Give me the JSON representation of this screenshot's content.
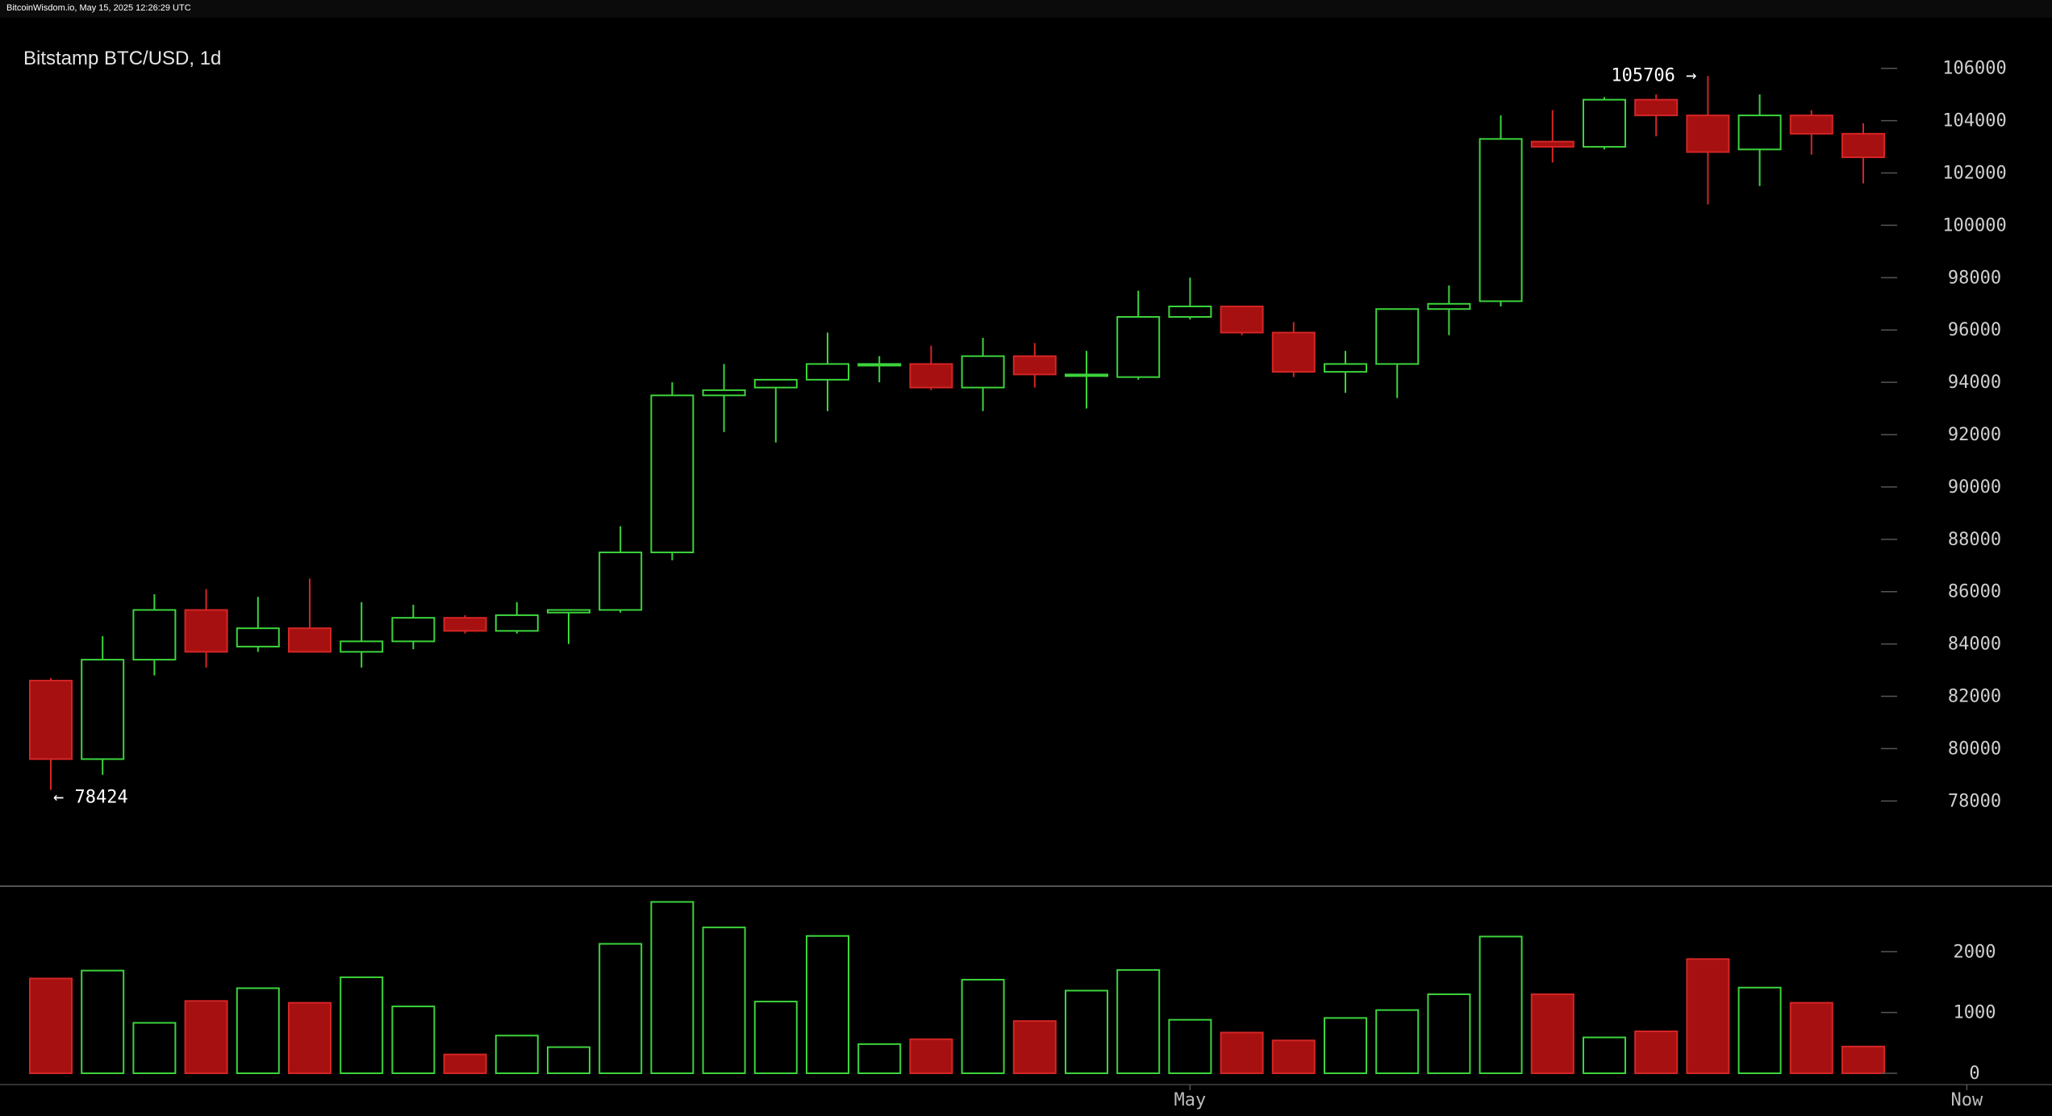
{
  "header": {
    "source_line": "BitcoinWisdom.io, May 15, 2025 12:26:29 UTC"
  },
  "chart_data": {
    "type": "candlestick",
    "title": "Bitstamp BTC/USD, 1d",
    "price_axis": {
      "ylim": [
        76500,
        106700
      ],
      "ticks": [
        78000,
        80000,
        82000,
        84000,
        86000,
        88000,
        90000,
        92000,
        94000,
        96000,
        98000,
        100000,
        102000,
        104000,
        106000
      ],
      "position": "right"
    },
    "volume_axis": {
      "ylim": [
        0,
        2800
      ],
      "ticks": [
        0,
        1000,
        2000
      ],
      "position": "right"
    },
    "x_labels": [
      {
        "index": 22,
        "text": "May"
      },
      {
        "index": 37,
        "text": "Now"
      }
    ],
    "grid": false,
    "colors": {
      "up": "#3cd43c",
      "down": "#a61010",
      "down_wick": "#d42525"
    },
    "annotations": [
      {
        "text": "105706 →",
        "index": 32,
        "value": 105706
      },
      {
        "text": "← 78424",
        "index": 0,
        "value": 78424
      }
    ],
    "candles": [
      {
        "o": 82600,
        "h": 82700,
        "l": 78424,
        "c": 79600,
        "v": 1560
      },
      {
        "o": 79600,
        "h": 84300,
        "l": 79000,
        "c": 83400,
        "v": 1690
      },
      {
        "o": 83400,
        "h": 85900,
        "l": 82800,
        "c": 85300,
        "v": 830
      },
      {
        "o": 85300,
        "h": 86100,
        "l": 83100,
        "c": 83700,
        "v": 1190
      },
      {
        "o": 83900,
        "h": 85800,
        "l": 83700,
        "c": 84600,
        "v": 1400
      },
      {
        "o": 84600,
        "h": 86500,
        "l": 83700,
        "c": 83700,
        "v": 1160
      },
      {
        "o": 83700,
        "h": 85600,
        "l": 83100,
        "c": 84100,
        "v": 1580
      },
      {
        "o": 84100,
        "h": 85500,
        "l": 83800,
        "c": 85000,
        "v": 1100
      },
      {
        "o": 85000,
        "h": 85100,
        "l": 84400,
        "c": 84500,
        "v": 310
      },
      {
        "o": 84500,
        "h": 85600,
        "l": 84400,
        "c": 85100,
        "v": 620
      },
      {
        "o": 85200,
        "h": 85300,
        "l": 84000,
        "c": 85300,
        "v": 430
      },
      {
        "o": 85300,
        "h": 88500,
        "l": 85200,
        "c": 87500,
        "v": 2130
      },
      {
        "o": 87500,
        "h": 94000,
        "l": 87200,
        "c": 93500,
        "v": 2820
      },
      {
        "o": 93500,
        "h": 94700,
        "l": 92100,
        "c": 93700,
        "v": 2400
      },
      {
        "o": 93800,
        "h": 94100,
        "l": 91700,
        "c": 94100,
        "v": 1180
      },
      {
        "o": 94100,
        "h": 95900,
        "l": 92900,
        "c": 94700,
        "v": 2260
      },
      {
        "o": 94700,
        "h": 95000,
        "l": 94000,
        "c": 94700,
        "v": 480
      },
      {
        "o": 94700,
        "h": 95400,
        "l": 93700,
        "c": 93800,
        "v": 560
      },
      {
        "o": 93800,
        "h": 95700,
        "l": 92900,
        "c": 95000,
        "v": 1540
      },
      {
        "o": 95000,
        "h": 95500,
        "l": 93800,
        "c": 94300,
        "v": 860
      },
      {
        "o": 94300,
        "h": 95200,
        "l": 93000,
        "c": 94300,
        "v": 1360
      },
      {
        "o": 94200,
        "h": 97500,
        "l": 94100,
        "c": 96500,
        "v": 1700
      },
      {
        "o": 96500,
        "h": 98000,
        "l": 96400,
        "c": 96900,
        "v": 880
      },
      {
        "o": 96900,
        "h": 96900,
        "l": 95800,
        "c": 95900,
        "v": 670
      },
      {
        "o": 95900,
        "h": 96300,
        "l": 94200,
        "c": 94400,
        "v": 540
      },
      {
        "o": 94400,
        "h": 95200,
        "l": 93600,
        "c": 94700,
        "v": 910
      },
      {
        "o": 94700,
        "h": 96800,
        "l": 93400,
        "c": 96800,
        "v": 1040
      },
      {
        "o": 96800,
        "h": 97700,
        "l": 95800,
        "c": 97000,
        "v": 1300
      },
      {
        "o": 97100,
        "h": 104200,
        "l": 96900,
        "c": 103300,
        "v": 2250
      },
      {
        "o": 103200,
        "h": 104400,
        "l": 102400,
        "c": 103000,
        "v": 1300
      },
      {
        "o": 103000,
        "h": 104900,
        "l": 102900,
        "c": 104800,
        "v": 590
      },
      {
        "o": 104800,
        "h": 105000,
        "l": 103400,
        "c": 104200,
        "v": 690
      },
      {
        "o": 104200,
        "h": 105706,
        "l": 100800,
        "c": 102800,
        "v": 1880
      },
      {
        "o": 102900,
        "h": 105000,
        "l": 101500,
        "c": 104200,
        "v": 1410
      },
      {
        "o": 104200,
        "h": 104400,
        "l": 102700,
        "c": 103500,
        "v": 1160
      },
      {
        "o": 103500,
        "h": 103900,
        "l": 101600,
        "c": 102600,
        "v": 440
      }
    ]
  }
}
